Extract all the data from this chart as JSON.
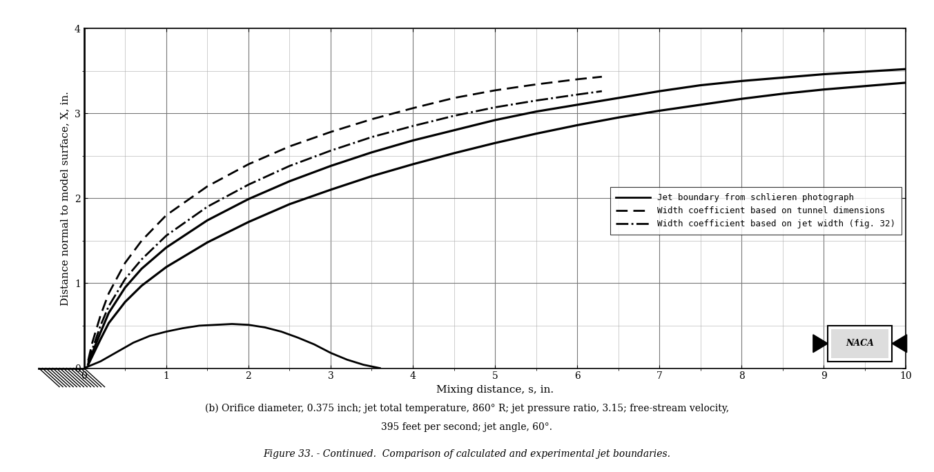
{
  "title": "",
  "xlabel": "Mixing distance, s, in.",
  "ylabel": "Distance normal to model surface, X, in.",
  "xlim": [
    0,
    10
  ],
  "ylim": [
    0,
    4
  ],
  "xticks": [
    0,
    1,
    2,
    3,
    4,
    5,
    6,
    7,
    8,
    9,
    10
  ],
  "yticks": [
    0,
    1,
    2,
    3,
    4
  ],
  "background_color": "#ffffff",
  "grid_color": "#888888",
  "line_color": "#000000",
  "legend_entries": [
    "Jet boundary from schlieren photograph",
    "Width coefficient based on tunnel dimensions",
    "Width coefficient based on jet width (fig. 32)"
  ],
  "caption_line1": "(b) Orifice diameter, 0.375 inch; jet total temperature, 860° R; jet pressure ratio, 3.15; free-stream velocity,",
  "caption_line2": "395 feet per second; jet angle, 60°.",
  "figure_caption": "Figure 33. - Continued.  Comparison of calculated and experimental jet boundaries.",
  "solid_upper_pts": [
    [
      0.05,
      0.05
    ],
    [
      0.1,
      0.18
    ],
    [
      0.2,
      0.42
    ],
    [
      0.3,
      0.65
    ],
    [
      0.5,
      0.95
    ],
    [
      0.7,
      1.17
    ],
    [
      1.0,
      1.42
    ],
    [
      1.5,
      1.74
    ],
    [
      2.0,
      1.99
    ],
    [
      2.5,
      2.2
    ],
    [
      3.0,
      2.38
    ],
    [
      3.5,
      2.54
    ],
    [
      4.0,
      2.68
    ],
    [
      4.5,
      2.8
    ],
    [
      5.0,
      2.92
    ],
    [
      5.5,
      3.02
    ],
    [
      6.0,
      3.1
    ],
    [
      6.5,
      3.18
    ],
    [
      7.0,
      3.26
    ],
    [
      7.5,
      3.33
    ],
    [
      8.0,
      3.38
    ],
    [
      8.5,
      3.42
    ],
    [
      9.0,
      3.46
    ],
    [
      9.5,
      3.49
    ],
    [
      10.0,
      3.52
    ]
  ],
  "solid_lower_pts": [
    [
      0.05,
      0.04
    ],
    [
      0.1,
      0.14
    ],
    [
      0.2,
      0.34
    ],
    [
      0.3,
      0.53
    ],
    [
      0.5,
      0.78
    ],
    [
      0.7,
      0.97
    ],
    [
      1.0,
      1.19
    ],
    [
      1.5,
      1.48
    ],
    [
      2.0,
      1.72
    ],
    [
      2.5,
      1.93
    ],
    [
      3.0,
      2.1
    ],
    [
      3.5,
      2.26
    ],
    [
      4.0,
      2.4
    ],
    [
      4.5,
      2.53
    ],
    [
      5.0,
      2.65
    ],
    [
      5.5,
      2.76
    ],
    [
      6.0,
      2.86
    ],
    [
      6.5,
      2.95
    ],
    [
      7.0,
      3.03
    ],
    [
      7.5,
      3.1
    ],
    [
      8.0,
      3.17
    ],
    [
      8.5,
      3.23
    ],
    [
      9.0,
      3.28
    ],
    [
      9.5,
      3.32
    ],
    [
      10.0,
      3.36
    ]
  ],
  "dashed_pts": [
    [
      0.05,
      0.09
    ],
    [
      0.1,
      0.3
    ],
    [
      0.2,
      0.62
    ],
    [
      0.3,
      0.88
    ],
    [
      0.5,
      1.24
    ],
    [
      0.7,
      1.5
    ],
    [
      1.0,
      1.8
    ],
    [
      1.5,
      2.14
    ],
    [
      2.0,
      2.4
    ],
    [
      2.5,
      2.61
    ],
    [
      3.0,
      2.78
    ],
    [
      3.5,
      2.93
    ],
    [
      4.0,
      3.06
    ],
    [
      4.5,
      3.18
    ],
    [
      5.0,
      3.27
    ],
    [
      5.5,
      3.34
    ],
    [
      6.0,
      3.4
    ],
    [
      6.3,
      3.43
    ]
  ],
  "dashdot_pts": [
    [
      0.05,
      0.07
    ],
    [
      0.1,
      0.22
    ],
    [
      0.2,
      0.5
    ],
    [
      0.3,
      0.73
    ],
    [
      0.5,
      1.05
    ],
    [
      0.7,
      1.28
    ],
    [
      1.0,
      1.56
    ],
    [
      1.5,
      1.9
    ],
    [
      2.0,
      2.16
    ],
    [
      2.5,
      2.38
    ],
    [
      3.0,
      2.56
    ],
    [
      3.5,
      2.72
    ],
    [
      4.0,
      2.85
    ],
    [
      4.5,
      2.97
    ],
    [
      5.0,
      3.07
    ],
    [
      5.5,
      3.15
    ],
    [
      6.0,
      3.22
    ],
    [
      6.3,
      3.26
    ]
  ],
  "bell_pts": [
    [
      0.0,
      0.0
    ],
    [
      0.2,
      0.08
    ],
    [
      0.4,
      0.19
    ],
    [
      0.6,
      0.3
    ],
    [
      0.8,
      0.38
    ],
    [
      1.0,
      0.43
    ],
    [
      1.2,
      0.47
    ],
    [
      1.4,
      0.5
    ],
    [
      1.6,
      0.51
    ],
    [
      1.8,
      0.52
    ],
    [
      2.0,
      0.51
    ],
    [
      2.2,
      0.48
    ],
    [
      2.4,
      0.43
    ],
    [
      2.6,
      0.36
    ],
    [
      2.8,
      0.28
    ],
    [
      3.0,
      0.18
    ],
    [
      3.2,
      0.1
    ],
    [
      3.4,
      0.04
    ],
    [
      3.6,
      0.0
    ]
  ]
}
